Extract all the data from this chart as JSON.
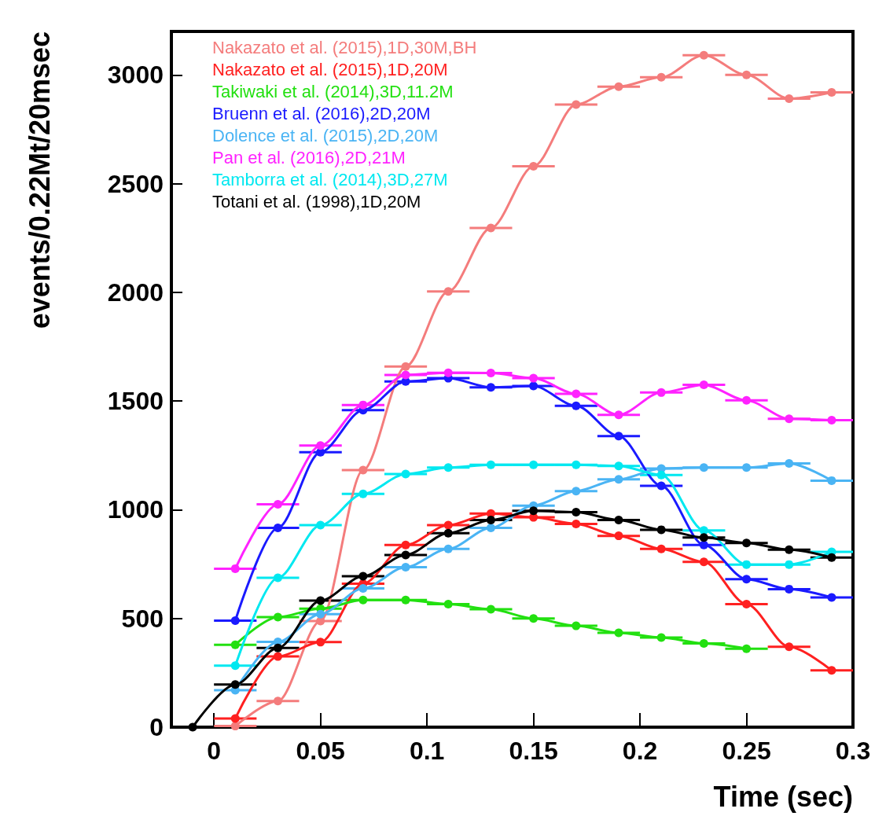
{
  "chart_data": {
    "type": "line",
    "xlabel": "Time (sec)",
    "ylabel": "events/0.22Mt/20msec",
    "xlim": [
      -0.02,
      0.3
    ],
    "xticks": [
      0,
      0.05,
      0.1,
      0.15,
      0.2,
      0.25,
      0.3
    ],
    "ylim": [
      0,
      3200
    ],
    "yticks": [
      0,
      500,
      1000,
      1500,
      2000,
      2500,
      3000
    ],
    "grid": false,
    "legend": "top left",
    "marker": "circle",
    "line_style": "solid",
    "series": [
      {
        "name": "Nakazato et al. (2015),1D,30M,BH",
        "color": "#f47c7c",
        "x": [
          0.01,
          0.03,
          0.05,
          0.07,
          0.09,
          0.11,
          0.13,
          0.15,
          0.17,
          0.19,
          0.21,
          0.23,
          0.25,
          0.27,
          0.29
        ],
        "values": [
          5,
          120,
          488,
          1182,
          1659,
          2004,
          2296,
          2580,
          2864,
          2946,
          2989,
          3091,
          3000,
          2891,
          2920
        ],
        "xerrors": [
          0.01,
          0.01,
          0.01,
          0.01,
          0.01,
          0.01,
          0.01,
          0.01,
          0.01,
          0.01,
          0.01,
          0.01,
          0.01,
          0.01,
          0.01
        ]
      },
      {
        "name": "Nakazato et al. (2015),1D,20M",
        "color": "#ff2020",
        "x": [
          0.01,
          0.03,
          0.05,
          0.07,
          0.09,
          0.11,
          0.13,
          0.15,
          0.17,
          0.19,
          0.21,
          0.23,
          0.25,
          0.27,
          0.29
        ],
        "values": [
          40,
          325,
          391,
          660,
          838,
          929,
          983,
          965,
          935,
          880,
          820,
          760,
          566,
          370,
          261
        ],
        "xerrors": [
          0.01,
          0.01,
          0.01,
          0.01,
          0.01,
          0.01,
          0.01,
          0.01,
          0.01,
          0.01,
          0.01,
          0.01,
          0.01,
          0.01,
          0.01
        ]
      },
      {
        "name": "Takiwaki et al. (2014),3D,11.2M",
        "color": "#22e010",
        "x": [
          0.01,
          0.03,
          0.05,
          0.07,
          0.09,
          0.11,
          0.13,
          0.15,
          0.17,
          0.19,
          0.21,
          0.23,
          0.25
        ],
        "values": [
          379,
          506,
          545,
          585,
          585,
          566,
          542,
          500,
          466,
          434,
          412,
          385,
          361
        ],
        "xerrors": [
          0.01,
          0.01,
          0.01,
          0.01,
          0.01,
          0.01,
          0.01,
          0.01,
          0.01,
          0.01,
          0.01,
          0.01,
          0.01
        ]
      },
      {
        "name": "Bruenn et al. (2016),2D,20M",
        "color": "#1a1aff",
        "x": [
          0.01,
          0.03,
          0.05,
          0.07,
          0.09,
          0.11,
          0.13,
          0.15,
          0.17,
          0.19,
          0.21,
          0.23,
          0.25,
          0.27,
          0.29
        ],
        "values": [
          490,
          917,
          1265,
          1458,
          1590,
          1605,
          1563,
          1569,
          1478,
          1339,
          1110,
          838,
          681,
          635,
          597
        ],
        "xerrors": [
          0.01,
          0.01,
          0.01,
          0.01,
          0.01,
          0.01,
          0.01,
          0.01,
          0.01,
          0.01,
          0.01,
          0.01,
          0.01,
          0.01,
          0.01
        ]
      },
      {
        "name": "Dolence et al. (2015),2D,20M",
        "color": "#4ab4f4",
        "x": [
          0.01,
          0.03,
          0.05,
          0.07,
          0.09,
          0.11,
          0.13,
          0.15,
          0.17,
          0.19,
          0.21,
          0.23,
          0.25,
          0.27,
          0.29
        ],
        "values": [
          170,
          392,
          520,
          638,
          736,
          820,
          917,
          1019,
          1086,
          1140,
          1190,
          1194,
          1194,
          1213,
          1134
        ],
        "xerrors": [
          0.01,
          0.01,
          0.01,
          0.01,
          0.01,
          0.01,
          0.01,
          0.01,
          0.01,
          0.01,
          0.01,
          0.01,
          0.01,
          0.01,
          0.01
        ]
      },
      {
        "name": "Pan et al. (2016),2D,21M",
        "color": "#ff22ff",
        "x": [
          0.01,
          0.03,
          0.05,
          0.07,
          0.09,
          0.11,
          0.13,
          0.15,
          0.17,
          0.19,
          0.21,
          0.23,
          0.25,
          0.27,
          0.29
        ],
        "values": [
          729,
          1025,
          1295,
          1482,
          1620,
          1630,
          1629,
          1605,
          1533,
          1436,
          1539,
          1575,
          1503,
          1418,
          1412
        ],
        "xerrors": [
          0.01,
          0.01,
          0.01,
          0.01,
          0.01,
          0.01,
          0.01,
          0.01,
          0.01,
          0.01,
          0.01,
          0.01,
          0.01,
          0.01,
          0.01
        ]
      },
      {
        "name": "Tamborra et al. (2014),3D,27M",
        "color": "#00e8f0",
        "x": [
          0.01,
          0.03,
          0.05,
          0.07,
          0.09,
          0.11,
          0.13,
          0.15,
          0.17,
          0.19,
          0.21,
          0.23,
          0.25,
          0.27,
          0.29
        ],
        "values": [
          283,
          687,
          929,
          1073,
          1164,
          1194,
          1207,
          1207,
          1207,
          1201,
          1160,
          905,
          748,
          748,
          806
        ],
        "xerrors": [
          0.01,
          0.01,
          0.01,
          0.01,
          0.01,
          0.01,
          0.01,
          0.01,
          0.01,
          0.01,
          0.01,
          0.01,
          0.01,
          0.01,
          0.01
        ]
      },
      {
        "name": "Totani et al. (1998),1D,20M",
        "color": "#000000",
        "x": [
          -0.01,
          0.01,
          0.03,
          0.05,
          0.07,
          0.09,
          0.11,
          0.13,
          0.15,
          0.17,
          0.19,
          0.21,
          0.23,
          0.25,
          0.27,
          0.29
        ],
        "values": [
          0,
          196,
          364,
          582,
          694,
          792,
          892,
          953,
          995,
          989,
          953,
          908,
          872,
          847,
          816,
          780
        ],
        "xerrors": [
          0.01,
          0.01,
          0.01,
          0.01,
          0.01,
          0.01,
          0.01,
          0.01,
          0.01,
          0.01,
          0.01,
          0.01,
          0.01,
          0.01,
          0.01,
          0.01
        ]
      }
    ]
  }
}
